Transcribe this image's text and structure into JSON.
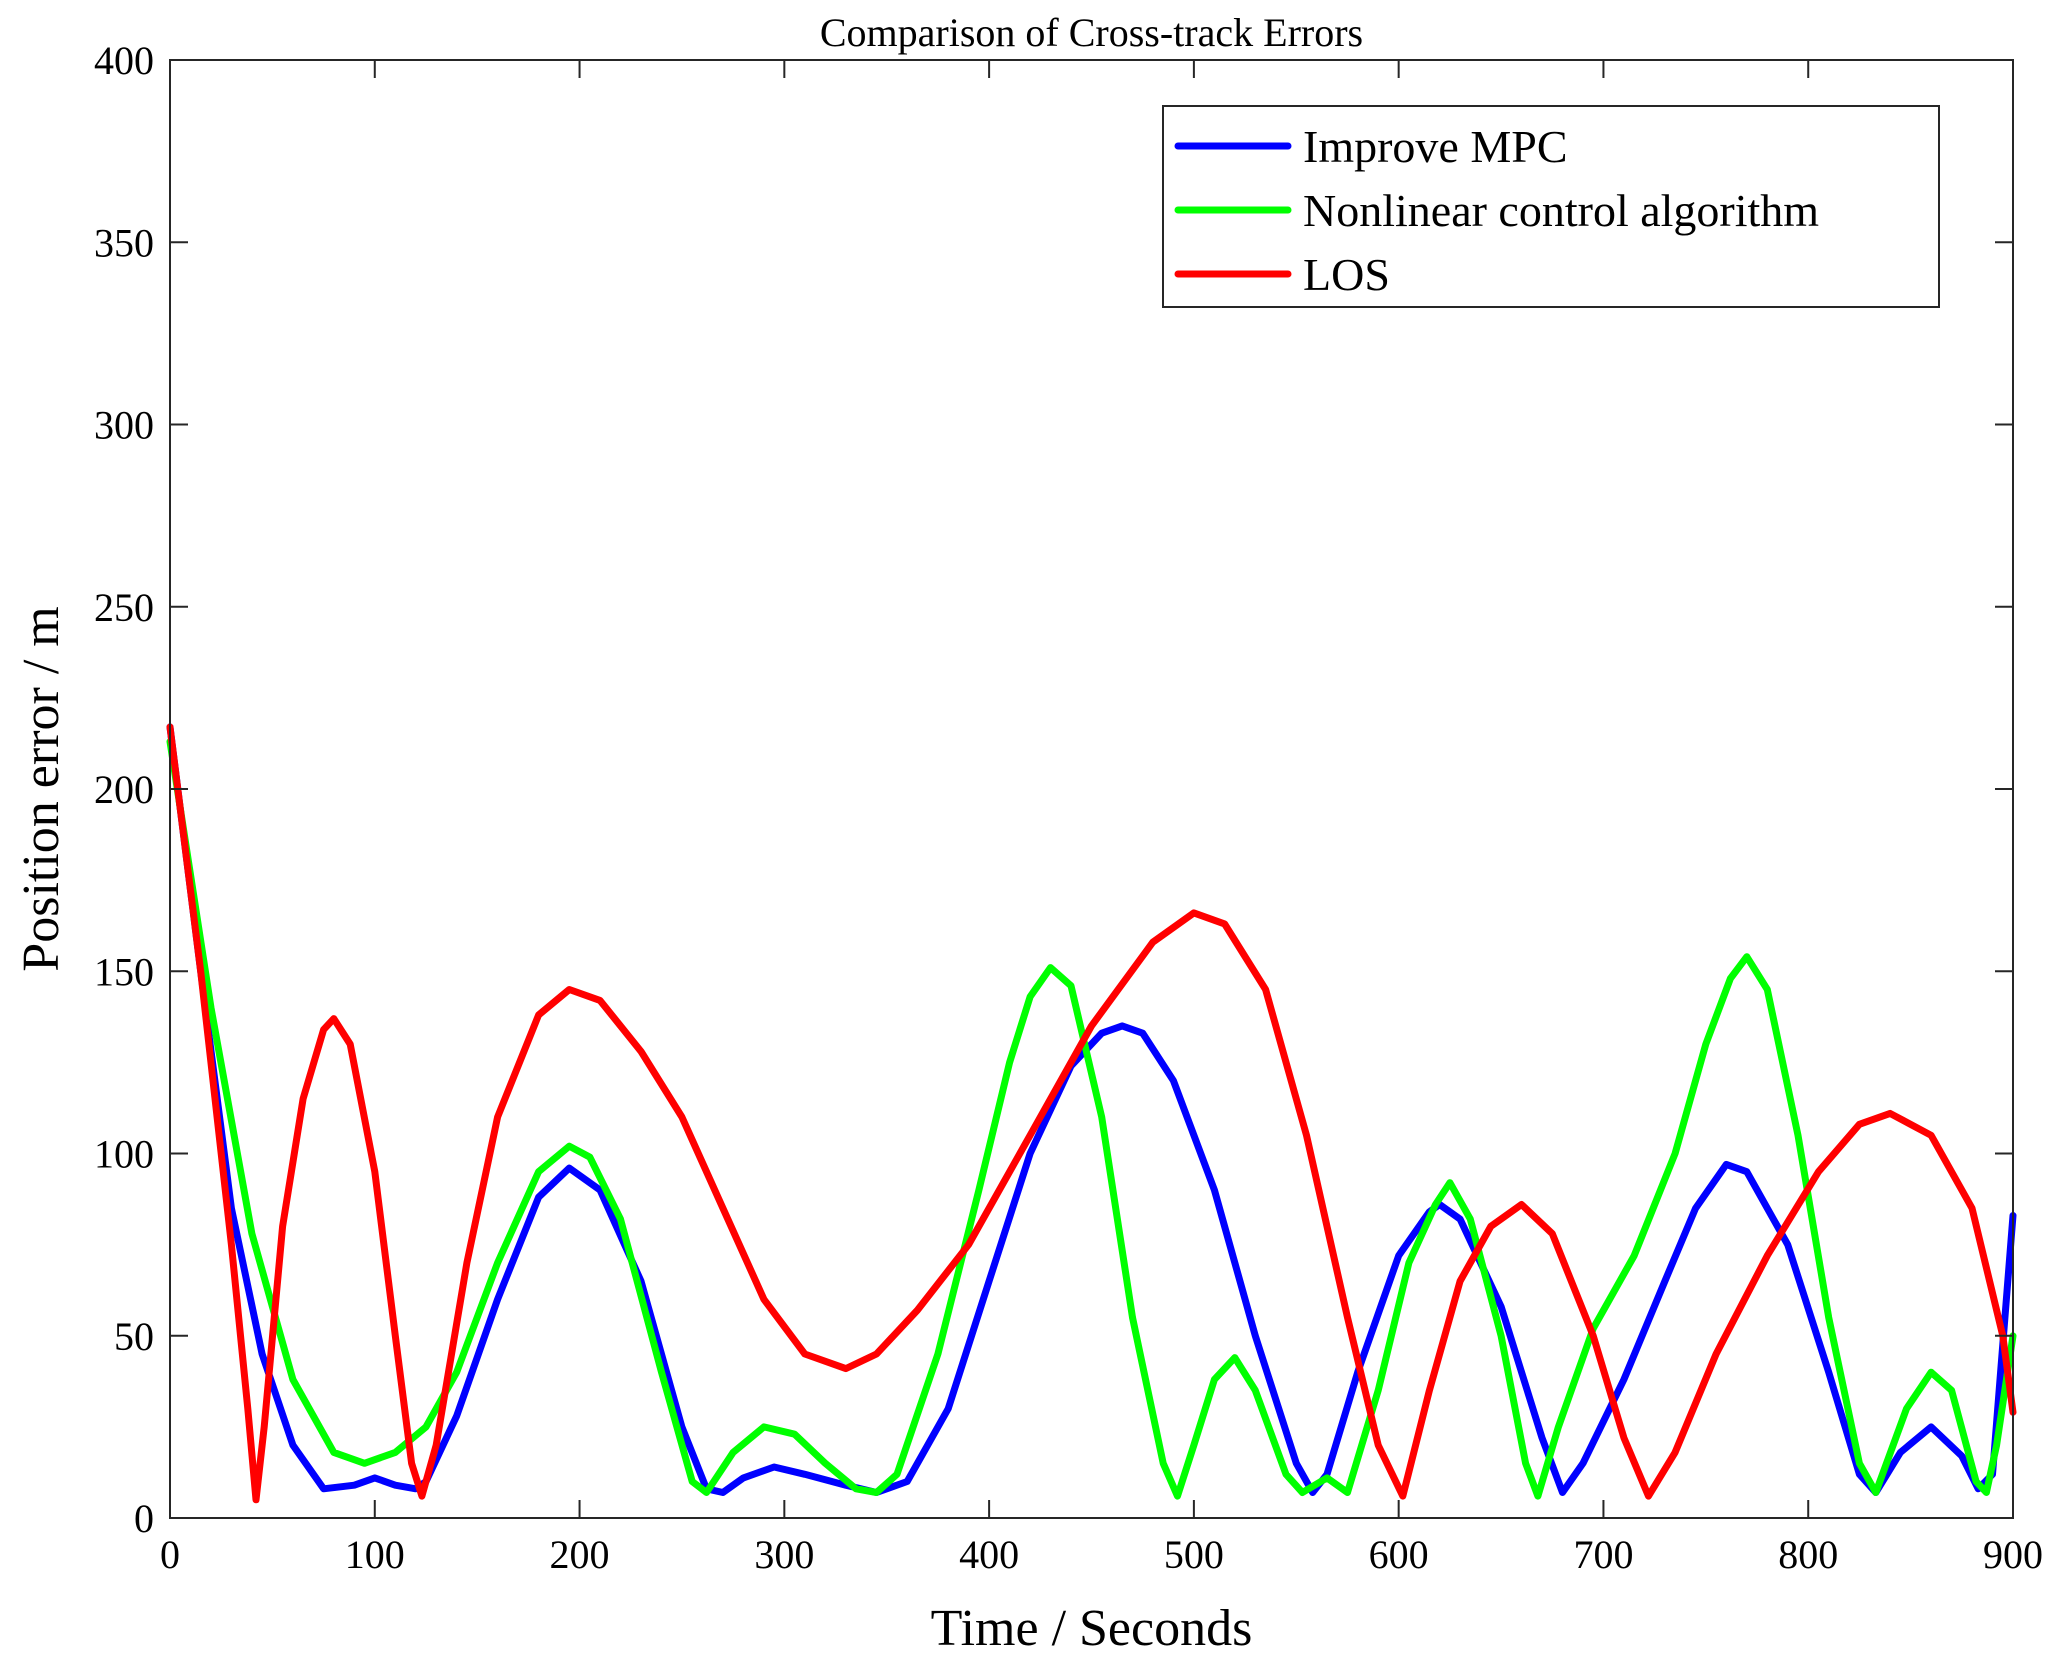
{
  "chart_data": {
    "type": "line",
    "title": "Comparison of Cross-track Errors",
    "xlabel": "Time / Seconds",
    "ylabel": "Position error / m",
    "xlim": [
      0,
      900
    ],
    "ylim": [
      0,
      400
    ],
    "xticks": [
      0,
      100,
      200,
      300,
      400,
      500,
      600,
      700,
      800,
      900
    ],
    "yticks": [
      0,
      50,
      100,
      150,
      200,
      250,
      300,
      350,
      400
    ],
    "grid": false,
    "legend_position": "top-right",
    "series": [
      {
        "name": "Improve MPC",
        "color": "#0000ff",
        "points": [
          [
            0,
            217
          ],
          [
            15,
            150
          ],
          [
            30,
            85
          ],
          [
            45,
            45
          ],
          [
            60,
            20
          ],
          [
            75,
            8
          ],
          [
            90,
            9
          ],
          [
            100,
            11
          ],
          [
            110,
            9
          ],
          [
            120,
            8
          ],
          [
            125,
            10
          ],
          [
            140,
            28
          ],
          [
            160,
            60
          ],
          [
            180,
            88
          ],
          [
            195,
            96
          ],
          [
            210,
            90
          ],
          [
            230,
            65
          ],
          [
            250,
            25
          ],
          [
            262,
            8
          ],
          [
            270,
            7
          ],
          [
            280,
            11
          ],
          [
            295,
            14
          ],
          [
            310,
            12
          ],
          [
            330,
            9
          ],
          [
            345,
            7
          ],
          [
            360,
            10
          ],
          [
            380,
            30
          ],
          [
            400,
            65
          ],
          [
            420,
            100
          ],
          [
            440,
            124
          ],
          [
            455,
            133
          ],
          [
            465,
            135
          ],
          [
            475,
            133
          ],
          [
            490,
            120
          ],
          [
            510,
            90
          ],
          [
            530,
            50
          ],
          [
            550,
            15
          ],
          [
            558,
            7
          ],
          [
            565,
            12
          ],
          [
            580,
            40
          ],
          [
            600,
            72
          ],
          [
            615,
            84
          ],
          [
            620,
            86
          ],
          [
            630,
            82
          ],
          [
            650,
            58
          ],
          [
            670,
            22
          ],
          [
            680,
            7
          ],
          [
            690,
            15
          ],
          [
            710,
            38
          ],
          [
            730,
            65
          ],
          [
            745,
            85
          ],
          [
            760,
            97
          ],
          [
            770,
            95
          ],
          [
            790,
            75
          ],
          [
            810,
            40
          ],
          [
            825,
            12
          ],
          [
            833,
            7
          ],
          [
            845,
            18
          ],
          [
            860,
            25
          ],
          [
            875,
            17
          ],
          [
            883,
            8
          ],
          [
            890,
            12
          ],
          [
            900,
            83
          ]
        ]
      },
      {
        "name": "Nonlinear control algorithm",
        "color": "#00ff00",
        "points": [
          [
            0,
            213
          ],
          [
            20,
            140
          ],
          [
            40,
            78
          ],
          [
            60,
            38
          ],
          [
            80,
            18
          ],
          [
            95,
            15
          ],
          [
            110,
            18
          ],
          [
            125,
            25
          ],
          [
            140,
            40
          ],
          [
            160,
            70
          ],
          [
            180,
            95
          ],
          [
            195,
            102
          ],
          [
            205,
            99
          ],
          [
            220,
            82
          ],
          [
            240,
            40
          ],
          [
            255,
            10
          ],
          [
            262,
            7
          ],
          [
            275,
            18
          ],
          [
            290,
            25
          ],
          [
            305,
            23
          ],
          [
            320,
            15
          ],
          [
            335,
            8
          ],
          [
            345,
            7
          ],
          [
            355,
            12
          ],
          [
            375,
            45
          ],
          [
            395,
            90
          ],
          [
            410,
            125
          ],
          [
            420,
            143
          ],
          [
            430,
            151
          ],
          [
            440,
            146
          ],
          [
            455,
            110
          ],
          [
            470,
            55
          ],
          [
            485,
            15
          ],
          [
            492,
            6
          ],
          [
            500,
            20
          ],
          [
            510,
            38
          ],
          [
            520,
            44
          ],
          [
            530,
            35
          ],
          [
            545,
            12
          ],
          [
            553,
            7
          ],
          [
            565,
            11
          ],
          [
            575,
            7
          ],
          [
            590,
            35
          ],
          [
            605,
            70
          ],
          [
            618,
            86
          ],
          [
            625,
            92
          ],
          [
            635,
            82
          ],
          [
            650,
            50
          ],
          [
            662,
            15
          ],
          [
            668,
            6
          ],
          [
            678,
            25
          ],
          [
            695,
            52
          ],
          [
            715,
            72
          ],
          [
            735,
            100
          ],
          [
            750,
            130
          ],
          [
            762,
            148
          ],
          [
            770,
            154
          ],
          [
            780,
            145
          ],
          [
            795,
            105
          ],
          [
            810,
            55
          ],
          [
            825,
            15
          ],
          [
            833,
            7
          ],
          [
            848,
            30
          ],
          [
            860,
            40
          ],
          [
            870,
            35
          ],
          [
            882,
            10
          ],
          [
            887,
            7
          ],
          [
            892,
            20
          ],
          [
            900,
            50
          ]
        ]
      },
      {
        "name": "LOS",
        "color": "#ff0000",
        "points": [
          [
            0,
            217
          ],
          [
            15,
            150
          ],
          [
            30,
            75
          ],
          [
            38,
            30
          ],
          [
            42,
            5
          ],
          [
            46,
            25
          ],
          [
            55,
            80
          ],
          [
            65,
            115
          ],
          [
            75,
            134
          ],
          [
            80,
            137
          ],
          [
            88,
            130
          ],
          [
            100,
            95
          ],
          [
            110,
            50
          ],
          [
            118,
            15
          ],
          [
            123,
            6
          ],
          [
            130,
            20
          ],
          [
            145,
            70
          ],
          [
            160,
            110
          ],
          [
            180,
            138
          ],
          [
            195,
            145
          ],
          [
            210,
            142
          ],
          [
            230,
            128
          ],
          [
            250,
            110
          ],
          [
            270,
            85
          ],
          [
            290,
            60
          ],
          [
            310,
            45
          ],
          [
            330,
            41
          ],
          [
            345,
            45
          ],
          [
            365,
            57
          ],
          [
            390,
            75
          ],
          [
            420,
            105
          ],
          [
            450,
            135
          ],
          [
            480,
            158
          ],
          [
            500,
            166
          ],
          [
            515,
            163
          ],
          [
            535,
            145
          ],
          [
            555,
            105
          ],
          [
            575,
            55
          ],
          [
            590,
            20
          ],
          [
            602,
            6
          ],
          [
            615,
            35
          ],
          [
            630,
            65
          ],
          [
            645,
            80
          ],
          [
            660,
            86
          ],
          [
            675,
            78
          ],
          [
            695,
            50
          ],
          [
            710,
            22
          ],
          [
            722,
            6
          ],
          [
            735,
            18
          ],
          [
            755,
            45
          ],
          [
            780,
            72
          ],
          [
            805,
            95
          ],
          [
            825,
            108
          ],
          [
            840,
            111
          ],
          [
            860,
            105
          ],
          [
            880,
            85
          ],
          [
            895,
            50
          ],
          [
            900,
            29
          ]
        ]
      }
    ]
  }
}
